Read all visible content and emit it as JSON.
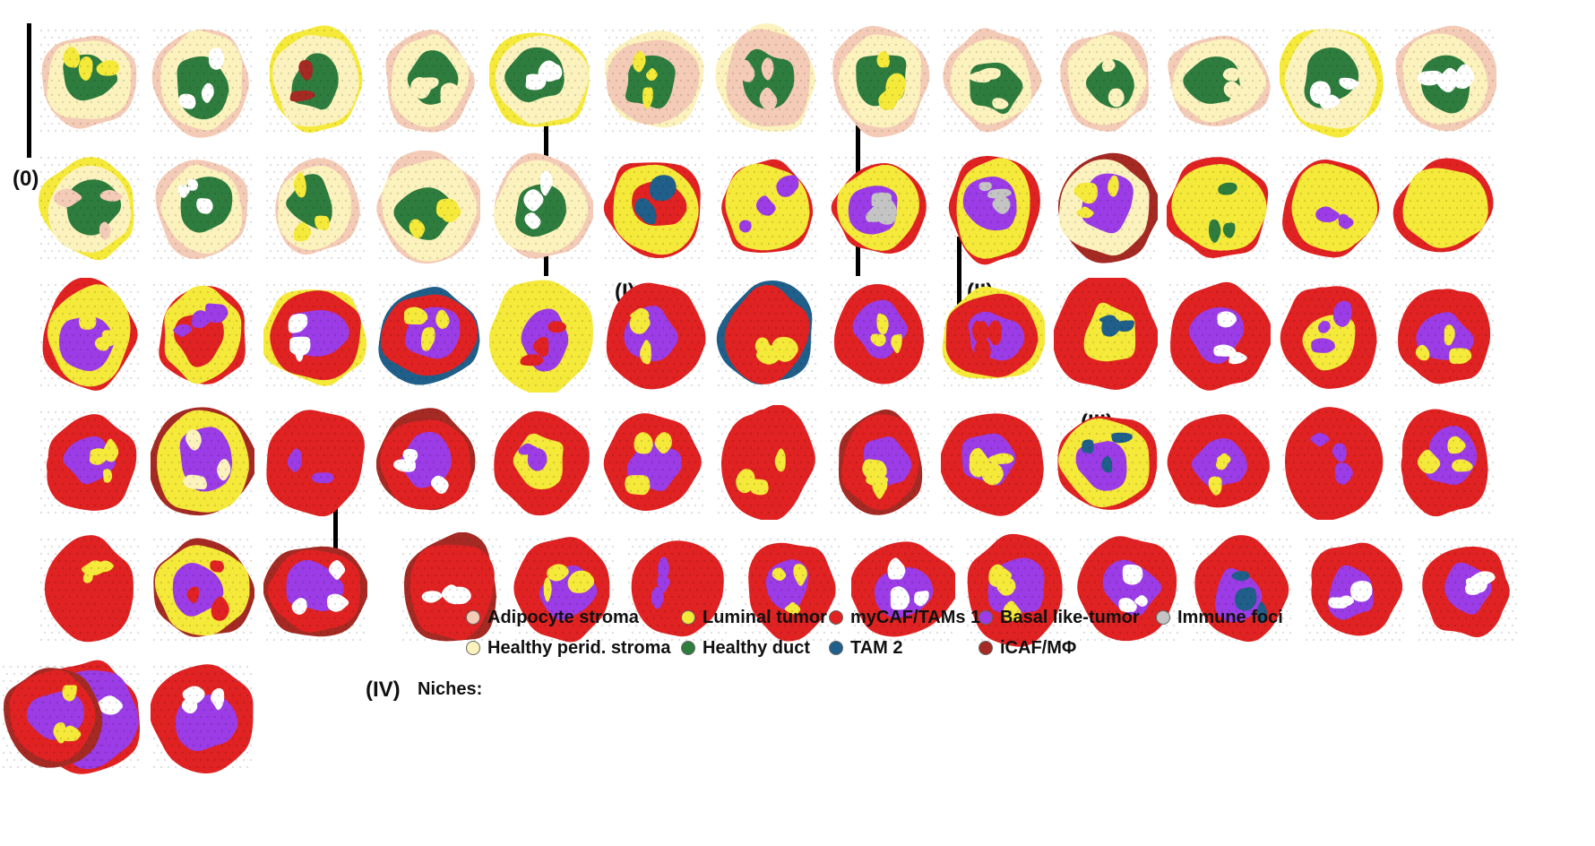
{
  "colors": {
    "adipocyte_stroma": "#f4cbb6",
    "healthy_perid_stroma": "#fbf2bd",
    "luminal_tumor": "#f5e93a",
    "healthy_duct": "#2e7d3e",
    "mycaf_tams1": "#e02222",
    "tam2": "#1f5f8a",
    "basal_like_tumor": "#9b3ce6",
    "icaf_mphi": "#a52a24",
    "immune_foci": "#c4c4c4",
    "gap": "#ffffff"
  },
  "groups": [
    {
      "label": "(0)"
    },
    {
      "label": "(I)"
    },
    {
      "label": "(II)"
    },
    {
      "label": "(III)"
    },
    {
      "label": "(IV)"
    }
  ],
  "legend": {
    "title": "Niches:",
    "items": [
      {
        "label": "Adipocyte stroma",
        "color": "#f4cbb6"
      },
      {
        "label": "Healthy perid. stroma",
        "color": "#fbf2bd"
      },
      {
        "label": "Luminal tumor",
        "color": "#f5e93a"
      },
      {
        "label": "Healthy duct",
        "color": "#2e7d3e"
      },
      {
        "label": "myCAF/TAMs 1",
        "color": "#e02222"
      },
      {
        "label": "TAM 2",
        "color": "#1f5f8a"
      },
      {
        "label": "Basal like-tumor",
        "color": "#9b3ce6"
      },
      {
        "label": "iCAF/MΦ",
        "color": "#a52a24"
      },
      {
        "label": "Immune foci",
        "color": "#c4c4c4"
      }
    ]
  },
  "samples": [
    {
      "group": 0,
      "bg": "healthy_perid_stroma",
      "main": "healthy_duct",
      "rim": "adipocyte_stroma",
      "accent": "luminal_tumor"
    },
    {
      "group": 0,
      "bg": "healthy_perid_stroma",
      "main": "healthy_duct",
      "rim": "adipocyte_stroma",
      "accent": "gap"
    },
    {
      "group": 0,
      "bg": "healthy_perid_stroma",
      "main": "healthy_duct",
      "rim": "luminal_tumor",
      "accent": "icaf_mphi"
    },
    {
      "group": 0,
      "bg": "healthy_perid_stroma",
      "main": "healthy_duct",
      "rim": "adipocyte_stroma",
      "accent": "healthy_perid_stroma"
    },
    {
      "group": 0,
      "bg": "healthy_perid_stroma",
      "main": "healthy_duct",
      "rim": "luminal_tumor",
      "accent": "gap"
    },
    {
      "group": 0,
      "bg": "adipocyte_stroma",
      "main": "healthy_duct",
      "rim": "healthy_perid_stroma",
      "accent": "luminal_tumor"
    },
    {
      "group": 0,
      "bg": "adipocyte_stroma",
      "main": "healthy_duct",
      "rim": "healthy_perid_stroma",
      "accent": "adipocyte_stroma"
    },
    {
      "group": 0,
      "bg": "healthy_perid_stroma",
      "main": "healthy_duct",
      "rim": "adipocyte_stroma",
      "accent": "luminal_tumor"
    },
    {
      "group": 0,
      "bg": "healthy_perid_stroma",
      "main": "healthy_duct",
      "rim": "adipocyte_stroma",
      "accent": "healthy_perid_stroma"
    },
    {
      "group": 0,
      "bg": "healthy_perid_stroma",
      "main": "healthy_duct",
      "rim": "adipocyte_stroma",
      "accent": "healthy_perid_stroma"
    },
    {
      "group": 0,
      "bg": "healthy_perid_stroma",
      "main": "healthy_duct",
      "rim": "adipocyte_stroma",
      "accent": "healthy_perid_stroma"
    },
    {
      "group": 0,
      "bg": "healthy_perid_stroma",
      "main": "healthy_duct",
      "rim": "luminal_tumor",
      "accent": "gap"
    },
    {
      "group": 0,
      "bg": "healthy_perid_stroma",
      "main": "healthy_duct",
      "rim": "adipocyte_stroma",
      "accent": "gap"
    },
    {
      "group": 0,
      "bg": "healthy_perid_stroma",
      "main": "healthy_duct",
      "rim": "luminal_tumor",
      "accent": "adipocyte_stroma"
    },
    {
      "group": 0,
      "bg": "healthy_perid_stroma",
      "main": "healthy_duct",
      "rim": "adipocyte_stroma",
      "accent": "gap"
    },
    {
      "group": 0,
      "bg": "healthy_perid_stroma",
      "main": "healthy_duct",
      "rim": "adipocyte_stroma",
      "accent": "luminal_tumor"
    },
    {
      "group": 0,
      "bg": "healthy_perid_stroma",
      "main": "healthy_duct",
      "rim": "adipocyte_stroma",
      "accent": "luminal_tumor"
    },
    {
      "group": 0,
      "bg": "healthy_perid_stroma",
      "main": "healthy_duct",
      "rim": "adipocyte_stroma",
      "accent": "gap"
    },
    {
      "group": 1,
      "bg": "luminal_tumor",
      "main": "mycaf_tams1",
      "rim": "mycaf_tams1",
      "accent": "tam2"
    },
    {
      "group": 1,
      "bg": "luminal_tumor",
      "main": "luminal_tumor",
      "rim": "mycaf_tams1",
      "accent": "basal_like_tumor"
    },
    {
      "group": 1,
      "bg": "luminal_tumor",
      "main": "basal_like_tumor",
      "rim": "mycaf_tams1",
      "accent": "immune_foci"
    },
    {
      "group": 2,
      "bg": "luminal_tumor",
      "main": "basal_like_tumor",
      "rim": "mycaf_tams1",
      "accent": "immune_foci"
    },
    {
      "group": 2,
      "bg": "healthy_perid_stroma",
      "main": "basal_like_tumor",
      "rim": "icaf_mphi",
      "accent": "luminal_tumor"
    },
    {
      "group": 2,
      "bg": "luminal_tumor",
      "main": "luminal_tumor",
      "rim": "mycaf_tams1",
      "accent": "healthy_duct"
    },
    {
      "group": 2,
      "bg": "luminal_tumor",
      "main": "luminal_tumor",
      "rim": "mycaf_tams1",
      "accent": "basal_like_tumor"
    },
    {
      "group": 2,
      "bg": "luminal_tumor",
      "main": "luminal_tumor",
      "rim": "mycaf_tams1",
      "accent": "luminal_tumor"
    },
    {
      "group": 2,
      "bg": "luminal_tumor",
      "main": "basal_like_tumor",
      "rim": "mycaf_tams1",
      "accent": "luminal_tumor"
    },
    {
      "group": 2,
      "bg": "luminal_tumor",
      "main": "mycaf_tams1",
      "rim": "mycaf_tams1",
      "accent": "basal_like_tumor"
    },
    {
      "group": 2,
      "bg": "mycaf_tams1",
      "main": "basal_like_tumor",
      "rim": "luminal_tumor",
      "accent": "gap"
    },
    {
      "group": 2,
      "bg": "mycaf_tams1",
      "main": "basal_like_tumor",
      "rim": "tam2",
      "accent": "luminal_tumor"
    },
    {
      "group": 2,
      "bg": "luminal_tumor",
      "main": "basal_like_tumor",
      "rim": "luminal_tumor",
      "accent": "mycaf_tams1"
    },
    {
      "group": 2,
      "bg": "mycaf_tams1",
      "main": "basal_like_tumor",
      "rim": "mycaf_tams1",
      "accent": "luminal_tumor"
    },
    {
      "group": 2,
      "bg": "mycaf_tams1",
      "main": "mycaf_tams1",
      "rim": "tam2",
      "accent": "luminal_tumor"
    },
    {
      "group": 2,
      "bg": "mycaf_tams1",
      "main": "basal_like_tumor",
      "rim": "mycaf_tams1",
      "accent": "luminal_tumor"
    },
    {
      "group": 2,
      "bg": "mycaf_tams1",
      "main": "basal_like_tumor",
      "rim": "luminal_tumor",
      "accent": "mycaf_tams1"
    },
    {
      "group": 3,
      "bg": "mycaf_tams1",
      "main": "luminal_tumor",
      "rim": "mycaf_tams1",
      "accent": "tam2"
    },
    {
      "group": 3,
      "bg": "mycaf_tams1",
      "main": "basal_like_tumor",
      "rim": "mycaf_tams1",
      "accent": "gap"
    },
    {
      "group": 3,
      "bg": "mycaf_tams1",
      "main": "luminal_tumor",
      "rim": "mycaf_tams1",
      "accent": "basal_like_tumor"
    },
    {
      "group": 3,
      "bg": "mycaf_tams1",
      "main": "basal_like_tumor",
      "rim": "mycaf_tams1",
      "accent": "luminal_tumor"
    },
    {
      "group": 3,
      "bg": "mycaf_tams1",
      "main": "basal_like_tumor",
      "rim": "mycaf_tams1",
      "accent": "luminal_tumor"
    },
    {
      "group": 3,
      "bg": "luminal_tumor",
      "main": "basal_like_tumor",
      "rim": "icaf_mphi",
      "accent": "healthy_perid_stroma"
    },
    {
      "group": 3,
      "bg": "mycaf_tams1",
      "main": "mycaf_tams1",
      "rim": "mycaf_tams1",
      "accent": "basal_like_tumor"
    },
    {
      "group": 3,
      "bg": "mycaf_tams1",
      "main": "basal_like_tumor",
      "rim": "icaf_mphi",
      "accent": "gap"
    },
    {
      "group": 3,
      "bg": "mycaf_tams1",
      "main": "luminal_tumor",
      "rim": "mycaf_tams1",
      "accent": "basal_like_tumor"
    },
    {
      "group": 3,
      "bg": "mycaf_tams1",
      "main": "basal_like_tumor",
      "rim": "mycaf_tams1",
      "accent": "luminal_tumor"
    },
    {
      "group": 3,
      "bg": "mycaf_tams1",
      "main": "mycaf_tams1",
      "rim": "mycaf_tams1",
      "accent": "luminal_tumor"
    },
    {
      "group": 3,
      "bg": "mycaf_tams1",
      "main": "basal_like_tumor",
      "rim": "icaf_mphi",
      "accent": "luminal_tumor"
    },
    {
      "group": 3,
      "bg": "mycaf_tams1",
      "main": "basal_like_tumor",
      "rim": "mycaf_tams1",
      "accent": "luminal_tumor"
    },
    {
      "group": 3,
      "bg": "luminal_tumor",
      "main": "basal_like_tumor",
      "rim": "mycaf_tams1",
      "accent": "tam2"
    },
    {
      "group": 3,
      "bg": "mycaf_tams1",
      "main": "basal_like_tumor",
      "rim": "mycaf_tams1",
      "accent": "luminal_tumor"
    },
    {
      "group": 3,
      "bg": "mycaf_tams1",
      "main": "mycaf_tams1",
      "rim": "mycaf_tams1",
      "accent": "basal_like_tumor"
    },
    {
      "group": 3,
      "bg": "mycaf_tams1",
      "main": "basal_like_tumor",
      "rim": "mycaf_tams1",
      "accent": "luminal_tumor"
    },
    {
      "group": 3,
      "bg": "mycaf_tams1",
      "main": "mycaf_tams1",
      "rim": "mycaf_tams1",
      "accent": "luminal_tumor"
    },
    {
      "group": 3,
      "bg": "luminal_tumor",
      "main": "basal_like_tumor",
      "rim": "icaf_mphi",
      "accent": "mycaf_tams1"
    },
    {
      "group": 3,
      "bg": "mycaf_tams1",
      "main": "basal_like_tumor",
      "rim": "icaf_mphi",
      "accent": "gap"
    },
    {
      "group": 4,
      "bg": "mycaf_tams1",
      "main": "mycaf_tams1",
      "rim": "icaf_mphi",
      "accent": "gap"
    },
    {
      "group": 4,
      "bg": "mycaf_tams1",
      "main": "basal_like_tumor",
      "rim": "mycaf_tams1",
      "accent": "luminal_tumor"
    },
    {
      "group": 4,
      "bg": "mycaf_tams1",
      "main": "mycaf_tams1",
      "rim": "mycaf_tams1",
      "accent": "basal_like_tumor"
    },
    {
      "group": 4,
      "bg": "mycaf_tams1",
      "main": "basal_like_tumor",
      "rim": "mycaf_tams1",
      "accent": "luminal_tumor"
    },
    {
      "group": 4,
      "bg": "mycaf_tams1",
      "main": "basal_like_tumor",
      "rim": "mycaf_tams1",
      "accent": "gap"
    },
    {
      "group": 4,
      "bg": "mycaf_tams1",
      "main": "basal_like_tumor",
      "rim": "mycaf_tams1",
      "accent": "luminal_tumor"
    },
    {
      "group": 4,
      "bg": "mycaf_tams1",
      "main": "basal_like_tumor",
      "rim": "mycaf_tams1",
      "accent": "gap"
    },
    {
      "group": 4,
      "bg": "mycaf_tams1",
      "main": "basal_like_tumor",
      "rim": "mycaf_tams1",
      "accent": "tam2"
    },
    {
      "group": 4,
      "bg": "mycaf_tams1",
      "main": "basal_like_tumor",
      "rim": "mycaf_tams1",
      "accent": "gap"
    },
    {
      "group": 4,
      "bg": "mycaf_tams1",
      "main": "basal_like_tumor",
      "rim": "mycaf_tams1",
      "accent": "gap"
    },
    {
      "group": 4,
      "bg": "basal_like_tumor",
      "main": "basal_like_tumor",
      "rim": "mycaf_tams1",
      "accent": "gap"
    },
    {
      "group": 4,
      "bg": "mycaf_tams1",
      "main": "basal_like_tumor",
      "rim": "mycaf_tams1",
      "accent": "gap"
    },
    {
      "group": 4,
      "bg": "mycaf_tams1",
      "main": "basal_like_tumor",
      "rim": "icaf_mphi",
      "accent": "luminal_tumor"
    }
  ]
}
